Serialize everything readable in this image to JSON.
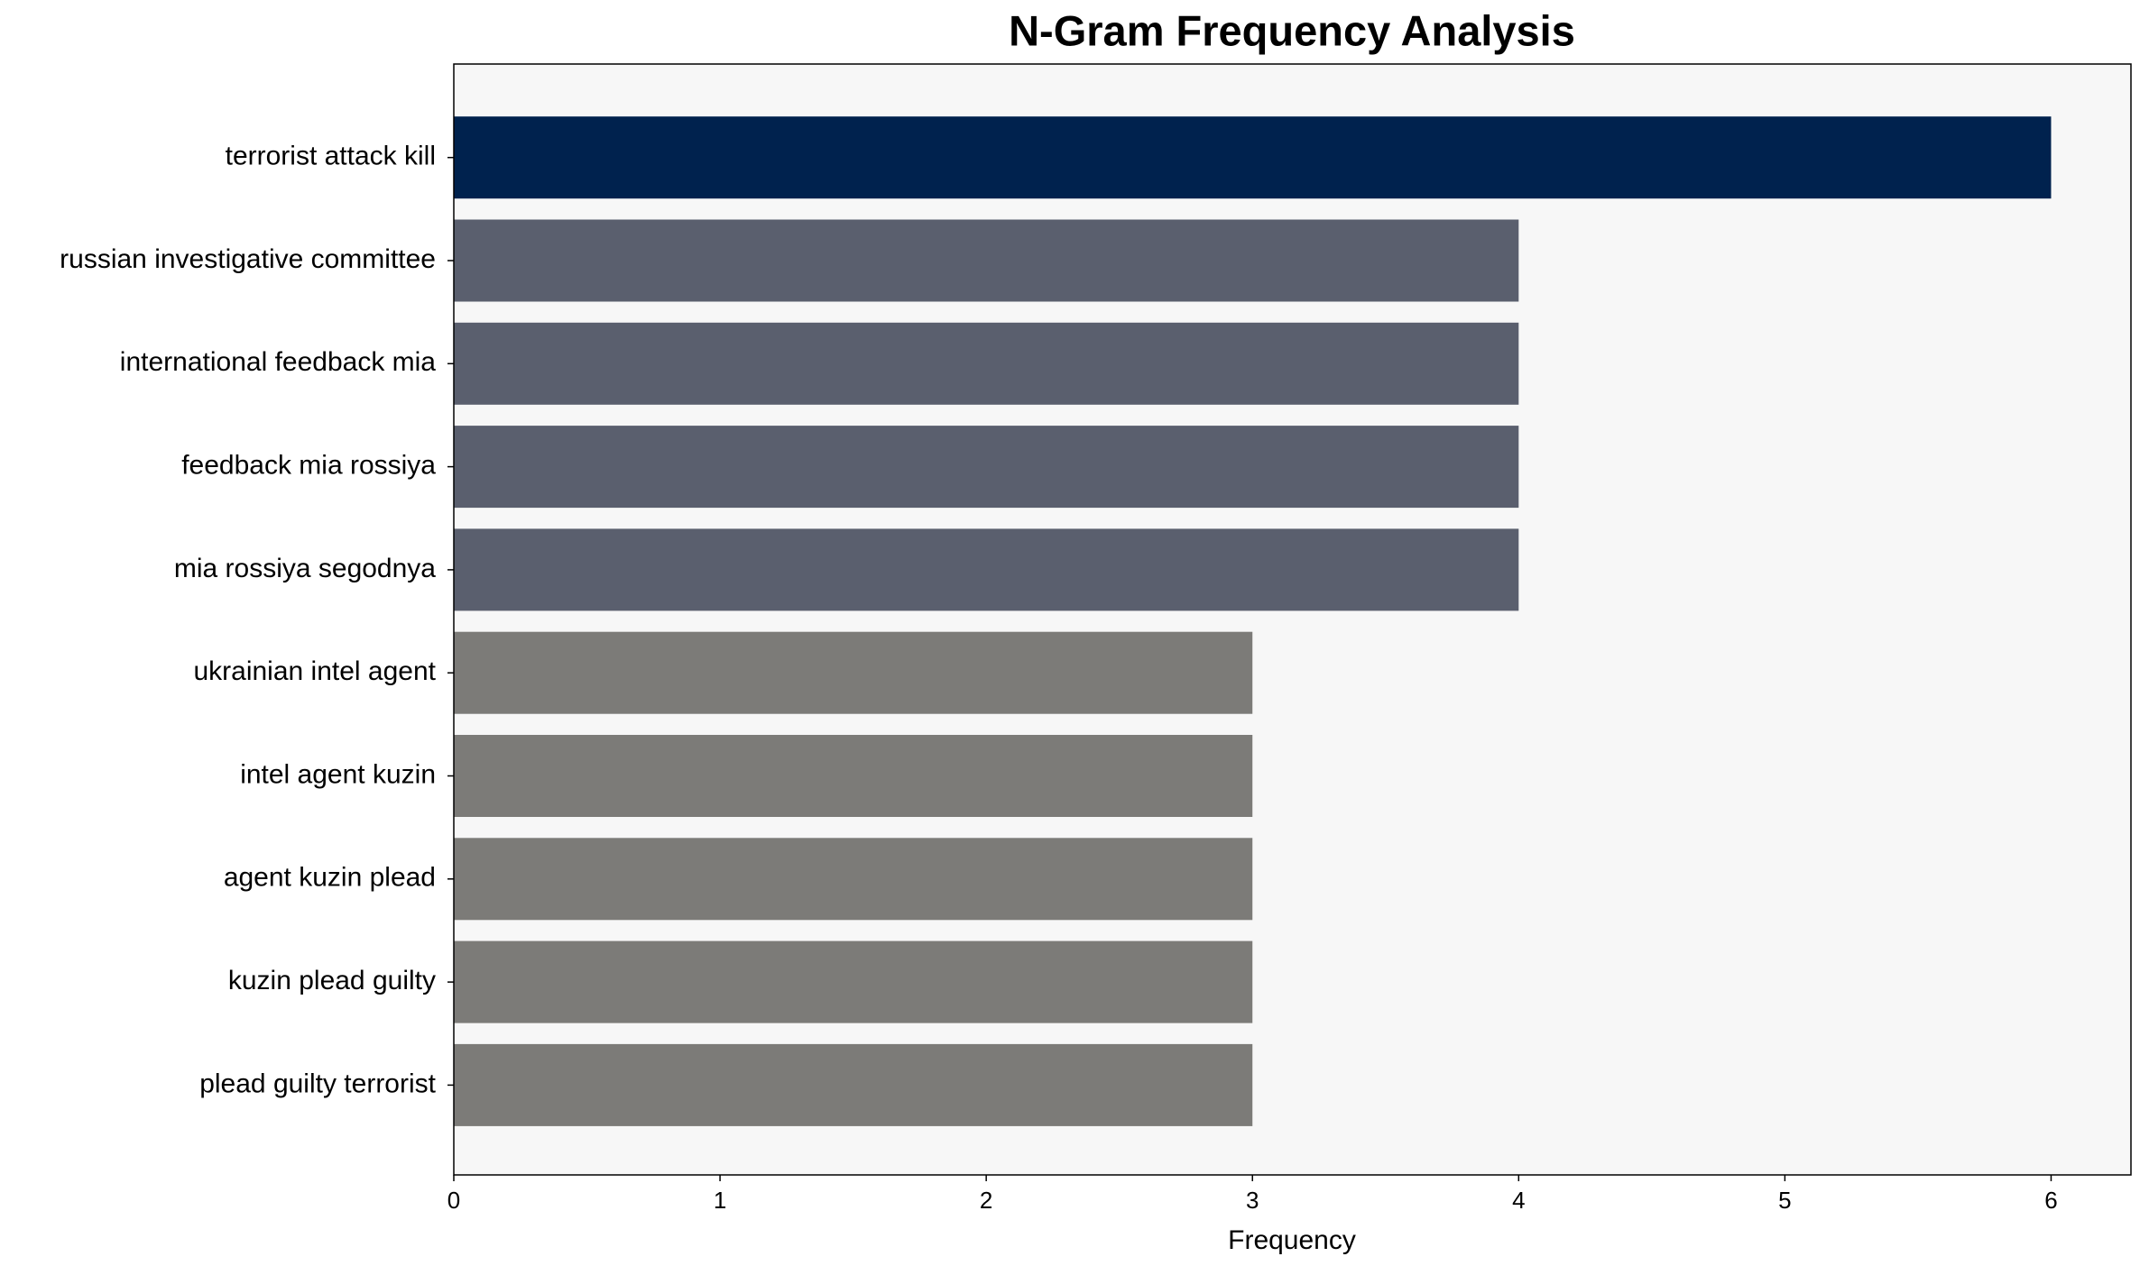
{
  "chart_data": {
    "type": "barh",
    "title": "N-Gram Frequency Analysis",
    "x_label": "Frequency",
    "categories": [
      "terrorist attack kill",
      "russian investigative committee",
      "international feedback mia",
      "feedback mia rossiya",
      "mia rossiya segodnya",
      "ukrainian intel agent",
      "intel agent kuzin",
      "agent kuzin plead",
      "kuzin plead guilty",
      "plead guilty terrorist"
    ],
    "values": [
      6,
      4,
      4,
      4,
      4,
      3,
      3,
      3,
      3,
      3
    ],
    "colors": [
      "#00224e",
      "#5a5f6e",
      "#5a5f6e",
      "#5a5f6e",
      "#5a5f6e",
      "#7c7b78",
      "#7c7b78",
      "#7c7b78",
      "#7c7b78",
      "#7c7b78"
    ],
    "xlim": [
      0,
      6.3
    ],
    "xticks": [
      0,
      1,
      2,
      3,
      4,
      5,
      6
    ],
    "grid": false
  }
}
